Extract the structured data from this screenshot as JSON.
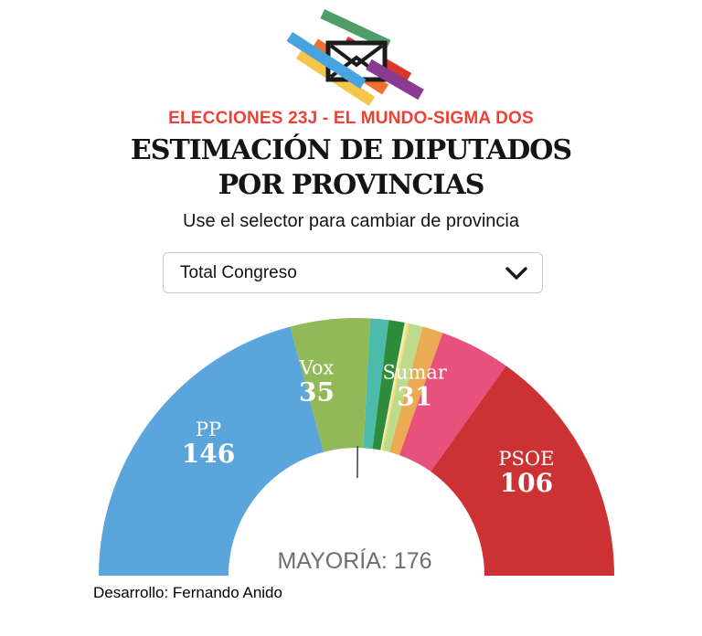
{
  "header": {
    "kicker": "ELECCIONES 23J - EL MUNDO-SIGMA DOS",
    "kicker_color": "#ee4136",
    "title_line1": "ESTIMACIÓN DE DIPUTADOS",
    "title_line2": "POR PROVINCIAS",
    "subtitle": "Use el selector para cambiar de provincia"
  },
  "logo": {
    "icon": "envelope-icon",
    "bar_colors": {
      "green": "#4f9e68",
      "blue": "#47a4e0",
      "yellow": "#f6c64b",
      "orange": "#ed7231",
      "red": "#da362a",
      "purple": "#8a3a90"
    },
    "envelope_color": "#1b1b1b"
  },
  "selector": {
    "value": "Total Congreso",
    "icon": "chevron-down-icon"
  },
  "chart_data": {
    "type": "hemicycle",
    "title": "Estimación de diputados - Total Congreso",
    "total_seats": 350,
    "majority": {
      "seats": 176,
      "label": "MAYORÍA: 176"
    },
    "majority_marker_color": "#4a4a4a",
    "label_text_color": "#ffffff",
    "segments": [
      {
        "name": "PP",
        "seats": 146,
        "color": "#59a5dc",
        "labeled": true,
        "label_angle_deg": 42,
        "value_label": "146"
      },
      {
        "name": "Vox",
        "seats": 35,
        "color": "#92b958",
        "labeled": true,
        "label_angle_deg": 78.5,
        "value_label": "35"
      },
      {
        "name": "",
        "seats": 8,
        "color": "#4cbbaa",
        "labeled": false
      },
      {
        "name": "",
        "seats": 7,
        "color": "#2e8b3a",
        "labeled": false
      },
      {
        "name": "",
        "seats": 1,
        "color": "#f2eec0",
        "labeled": false
      },
      {
        "name": "",
        "seats": 1,
        "color": "#f8dc72",
        "labeled": false
      },
      {
        "name": "",
        "seats": 6,
        "color": "#bdda8d",
        "labeled": false
      },
      {
        "name": "",
        "seats": 9,
        "color": "#eaab52",
        "labeled": false
      },
      {
        "name": "Sumar",
        "seats": 31,
        "color": "#e8517b",
        "labeled": true,
        "label_angle_deg": 107,
        "value_label": "31"
      },
      {
        "name": "PSOE",
        "seats": 106,
        "color": "#cc3133",
        "labeled": true,
        "label_angle_deg": 148.5,
        "value_label": "106"
      }
    ]
  },
  "footer": {
    "credit": "Desarrollo: Fernando Anido"
  }
}
